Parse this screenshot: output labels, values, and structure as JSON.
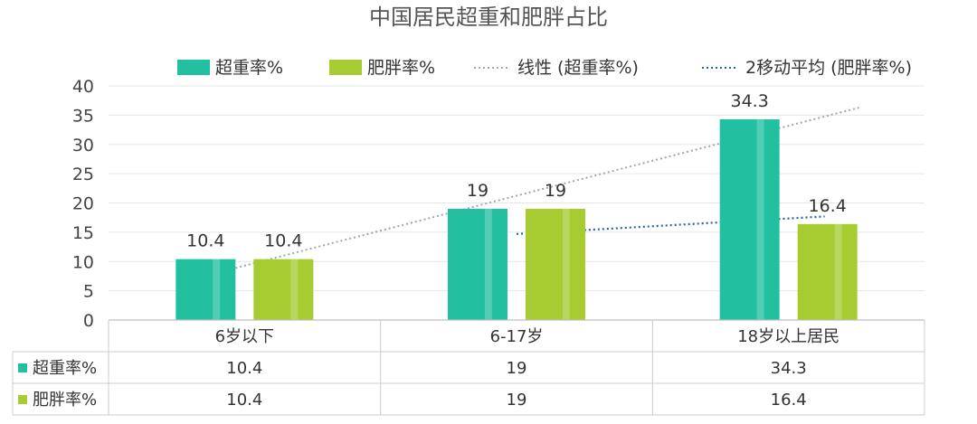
{
  "chart_data": {
    "type": "bar",
    "title": "中国居民超重和肥胖占比",
    "categories": [
      "6岁以下",
      "6-17岁",
      "18岁以上居民"
    ],
    "series": [
      {
        "name": "超重率%",
        "values": [
          10.4,
          19,
          34.3
        ],
        "color": "#22bfa0"
      },
      {
        "name": "肥胖率%",
        "values": [
          10.4,
          19,
          16.4
        ],
        "color": "#a6cc32"
      }
    ],
    "trendlines": [
      {
        "name": "线性 (超重率%)",
        "kind": "linear",
        "series": "超重率%",
        "color": "#9aa8b0"
      },
      {
        "name": "2移动平均 (肥胖率%)",
        "kind": "moving_average",
        "period": 2,
        "series": "肥胖率%",
        "color": "#2e5fa8"
      }
    ],
    "ylim": [
      0,
      40
    ],
    "yticks": [
      0,
      5,
      10,
      15,
      20,
      25,
      30,
      35,
      40
    ],
    "grid": true,
    "legend": "top",
    "data_table": true
  }
}
